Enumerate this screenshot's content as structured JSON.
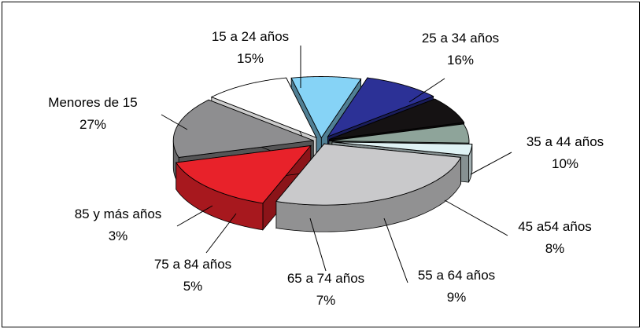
{
  "chart_data": {
    "type": "pie",
    "style": "3d-exploded",
    "slices": [
      {
        "label": "15 a 24 años",
        "value": 15,
        "value_label": "15%",
        "color": "#e8222a"
      },
      {
        "label": "25 a 34 años",
        "value": 16,
        "value_label": "16%",
        "color": "#8e8e90"
      },
      {
        "label": "35 a 44 años",
        "value": 10,
        "value_label": "10%",
        "color": "#ffffff"
      },
      {
        "label": "45 a54 años",
        "value": 8,
        "value_label": "8%",
        "color": "#86d3f6"
      },
      {
        "label": "55 a 64 años",
        "value": 9,
        "value_label": "9%",
        "color": "#2c3196"
      },
      {
        "label": "65 a 74 años",
        "value": 7,
        "value_label": "7%",
        "color": "#151213"
      },
      {
        "label": "75 a 84 años",
        "value": 5,
        "value_label": "5%",
        "color": "#8ea49a"
      },
      {
        "label": "85 y más años",
        "value": 3,
        "value_label": "3%",
        "color": "#dff2f4"
      },
      {
        "label": "Menores de 15",
        "value": 27,
        "value_label": "27%",
        "color": "#c9c9cb"
      }
    ]
  }
}
